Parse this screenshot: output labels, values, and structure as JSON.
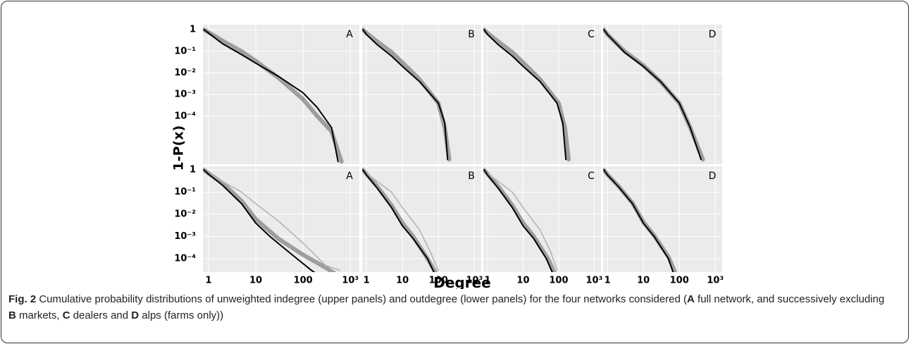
{
  "chart_data": [
    {
      "type": "line",
      "label": "A",
      "xlim": [
        0.76,
        1550
      ],
      "ylim": [
        1.7,
        6e-07
      ],
      "log_x": true,
      "log_y": true,
      "grid": true,
      "xticks": [
        1,
        10,
        100,
        {
          "value": 1000,
          "label": "10³"
        }
      ],
      "yticks": [
        1,
        {
          "value": 0.1,
          "label": "10⁻¹"
        },
        {
          "value": 0.01,
          "label": "10⁻²"
        },
        {
          "value": 0.001,
          "label": "10⁻³"
        },
        {
          "value": 0.0001,
          "label": "10⁻⁴"
        }
      ],
      "series": [
        {
          "color": "#9e9e9e",
          "x": [
            0.8,
            1,
            2,
            5,
            10,
            30,
            100,
            200,
            400,
            650
          ],
          "values": [
            1,
            0.75,
            0.3,
            0.1,
            0.035,
            0.006,
            0.0006,
            0.0001,
            2e-05,
            8e-07
          ]
        },
        {
          "color": "#000000",
          "x": [
            0.8,
            1,
            2,
            5,
            10,
            30,
            100,
            200,
            400,
            550
          ],
          "values": [
            1,
            0.7,
            0.22,
            0.07,
            0.028,
            0.007,
            0.0012,
            0.00025,
            3e-05,
            8e-07
          ]
        }
      ]
    },
    {
      "type": "line",
      "label": "B",
      "xlim": [
        0.76,
        1550
      ],
      "ylim": [
        1.7,
        6e-07
      ],
      "log_x": true,
      "log_y": true,
      "grid": true,
      "xticks": [
        1,
        10,
        100,
        {
          "value": 1000,
          "label": "10³"
        }
      ],
      "yticks": [
        1,
        {
          "value": 0.1,
          "label": "10⁻¹"
        },
        {
          "value": 0.01,
          "label": "10⁻²"
        },
        {
          "value": 0.001,
          "label": "10⁻³"
        },
        {
          "value": 0.0001,
          "label": "10⁻⁴"
        }
      ],
      "series": [
        {
          "color": "#9e9e9e",
          "x": [
            0.8,
            1,
            2,
            5,
            10,
            30,
            100,
            150,
            200
          ],
          "values": [
            1,
            0.7,
            0.28,
            0.09,
            0.03,
            0.005,
            0.0004,
            3e-05,
            1e-06
          ]
        },
        {
          "color": "#000000",
          "x": [
            0.8,
            1,
            2,
            5,
            10,
            30,
            100,
            150,
            180
          ],
          "values": [
            1,
            0.6,
            0.2,
            0.06,
            0.02,
            0.004,
            0.0004,
            5e-05,
            1e-06
          ]
        }
      ]
    },
    {
      "type": "line",
      "label": "C",
      "xlim": [
        0.76,
        1550
      ],
      "ylim": [
        1.7,
        6e-07
      ],
      "log_x": true,
      "log_y": true,
      "grid": true,
      "xticks": [
        1,
        10,
        100,
        {
          "value": 1000,
          "label": "10³"
        }
      ],
      "yticks": [
        1,
        {
          "value": 0.1,
          "label": "10⁻¹"
        },
        {
          "value": 0.01,
          "label": "10⁻²"
        },
        {
          "value": 0.001,
          "label": "10⁻³"
        },
        {
          "value": 0.0001,
          "label": "10⁻⁴"
        }
      ],
      "series": [
        {
          "color": "#9e9e9e",
          "x": [
            0.8,
            1,
            2,
            5,
            10,
            30,
            100,
            150,
            190
          ],
          "values": [
            1,
            0.7,
            0.28,
            0.09,
            0.03,
            0.005,
            0.0004,
            3e-05,
            1e-06
          ]
        },
        {
          "color": "#000000",
          "x": [
            0.8,
            1,
            2,
            5,
            10,
            30,
            90,
            130,
            160
          ],
          "values": [
            1,
            0.6,
            0.2,
            0.06,
            0.02,
            0.004,
            0.0004,
            5e-05,
            1e-06
          ]
        }
      ]
    },
    {
      "type": "line",
      "label": "D",
      "xlim": [
        0.76,
        1550
      ],
      "ylim": [
        1.7,
        6e-07
      ],
      "log_x": true,
      "log_y": true,
      "grid": true,
      "xticks": [
        1,
        10,
        100,
        {
          "value": 1000,
          "label": "10³"
        }
      ],
      "yticks": [
        1,
        {
          "value": 0.1,
          "label": "10⁻¹"
        },
        {
          "value": 0.01,
          "label": "10⁻²"
        },
        {
          "value": 0.001,
          "label": "10⁻³"
        },
        {
          "value": 0.0001,
          "label": "10⁻⁴"
        }
      ],
      "series": [
        {
          "color": "#9e9e9e",
          "x": [
            0.8,
            1,
            3,
            10,
            30,
            100,
            200,
            450
          ],
          "values": [
            1,
            0.6,
            0.1,
            0.022,
            0.004,
            0.0004,
            3e-05,
            1e-06
          ]
        },
        {
          "color": "#000000",
          "x": [
            0.8,
            1,
            3,
            10,
            30,
            100,
            200,
            400
          ],
          "values": [
            1,
            0.6,
            0.09,
            0.02,
            0.004,
            0.0004,
            3e-05,
            1e-06
          ]
        }
      ]
    },
    {
      "type": "line",
      "label": "A",
      "xlim": [
        0.76,
        1550
      ],
      "ylim": [
        1.45,
        2.5e-05
      ],
      "log_x": true,
      "log_y": true,
      "grid": true,
      "xticks": [
        1,
        10,
        100,
        {
          "value": 1000,
          "label": "10³"
        }
      ],
      "yticks": [
        1,
        {
          "value": 0.1,
          "label": "10⁻¹"
        },
        {
          "value": 0.01,
          "label": "10⁻²"
        },
        {
          "value": 0.001,
          "label": "10⁻³"
        },
        {
          "value": 0.0001,
          "label": "10⁻⁴"
        }
      ],
      "series": [
        {
          "color": "#9e9e9e",
          "x": [
            0.8,
            1,
            2,
            5,
            10,
            30,
            100,
            300,
            500
          ],
          "values": [
            1,
            0.7,
            0.25,
            0.04,
            0.006,
            0.0008,
            0.00015,
            4e-05,
            2e-05
          ]
        },
        {
          "color": "#b5b5b5",
          "x": [
            1,
            2,
            5,
            10,
            30,
            100,
            300,
            600
          ],
          "values": [
            0.7,
            0.3,
            0.1,
            0.03,
            0.005,
            0.0005,
            5e-05,
            3e-05
          ]
        },
        {
          "color": "#000000",
          "x": [
            0.8,
            1,
            2,
            5,
            10,
            20,
            50,
            100,
            150,
            200
          ],
          "values": [
            1,
            0.65,
            0.2,
            0.03,
            0.004,
            0.001,
            0.0002,
            6e-05,
            3e-05,
            2e-05
          ]
        }
      ]
    },
    {
      "type": "line",
      "label": "B",
      "xlim": [
        0.76,
        1550
      ],
      "ylim": [
        1.45,
        2.5e-05
      ],
      "log_x": true,
      "log_y": true,
      "grid": true,
      "xticks": [
        1,
        10,
        100,
        {
          "value": 1000,
          "label": "10³"
        }
      ],
      "yticks": [
        1,
        {
          "value": 0.1,
          "label": "10⁻¹"
        },
        {
          "value": 0.01,
          "label": "10⁻²"
        },
        {
          "value": 0.001,
          "label": "10⁻³"
        },
        {
          "value": 0.0001,
          "label": "10⁻⁴"
        }
      ],
      "series": [
        {
          "color": "#9e9e9e",
          "x": [
            0.8,
            1,
            2,
            5,
            10,
            20,
            50,
            90
          ],
          "values": [
            1,
            0.65,
            0.18,
            0.025,
            0.004,
            0.001,
            0.0001,
            2e-05
          ]
        },
        {
          "color": "#b5b5b5",
          "x": [
            1,
            2,
            5,
            10,
            30,
            60,
            100
          ],
          "values": [
            0.7,
            0.3,
            0.1,
            0.02,
            0.002,
            0.0002,
            3e-05
          ]
        },
        {
          "color": "#000000",
          "x": [
            0.8,
            1,
            2,
            5,
            10,
            20,
            50,
            80
          ],
          "values": [
            1,
            0.6,
            0.15,
            0.02,
            0.003,
            0.0008,
            0.0001,
            2e-05
          ]
        }
      ]
    },
    {
      "type": "line",
      "label": "C",
      "xlim": [
        0.76,
        1550
      ],
      "ylim": [
        1.45,
        2.5e-05
      ],
      "log_x": true,
      "log_y": true,
      "grid": true,
      "xticks": [
        1,
        10,
        100,
        {
          "value": 1000,
          "label": "10³"
        }
      ],
      "yticks": [
        1,
        {
          "value": 0.1,
          "label": "10⁻¹"
        },
        {
          "value": 0.01,
          "label": "10⁻²"
        },
        {
          "value": 0.001,
          "label": "10⁻³"
        },
        {
          "value": 0.0001,
          "label": "10⁻⁴"
        }
      ],
      "series": [
        {
          "color": "#9e9e9e",
          "x": [
            0.8,
            1,
            2,
            5,
            10,
            20,
            50,
            80
          ],
          "values": [
            1,
            0.65,
            0.18,
            0.025,
            0.004,
            0.001,
            0.0001,
            2e-05
          ]
        },
        {
          "color": "#b5b5b5",
          "x": [
            1,
            2,
            5,
            10,
            30,
            60,
            90
          ],
          "values": [
            0.7,
            0.3,
            0.1,
            0.02,
            0.002,
            0.0002,
            3e-05
          ]
        },
        {
          "color": "#000000",
          "x": [
            0.8,
            1,
            2,
            5,
            10,
            20,
            45,
            70
          ],
          "values": [
            1,
            0.6,
            0.15,
            0.02,
            0.003,
            0.0008,
            0.0001,
            2e-05
          ]
        }
      ]
    },
    {
      "type": "line",
      "label": "D",
      "xlim": [
        0.76,
        1550
      ],
      "ylim": [
        1.45,
        2.5e-05
      ],
      "log_x": true,
      "log_y": true,
      "grid": true,
      "xticks": [
        1,
        10,
        100,
        {
          "value": 1000,
          "label": "10³"
        }
      ],
      "yticks": [
        1,
        {
          "value": 0.1,
          "label": "10⁻¹"
        },
        {
          "value": 0.01,
          "label": "10⁻²"
        },
        {
          "value": 0.001,
          "label": "10⁻³"
        },
        {
          "value": 0.0001,
          "label": "10⁻⁴"
        }
      ],
      "series": [
        {
          "color": "#9e9e9e",
          "x": [
            0.8,
            1,
            2,
            5,
            10,
            20,
            50,
            80
          ],
          "values": [
            1,
            0.62,
            0.19,
            0.032,
            0.0045,
            0.0011,
            0.00012,
            2e-05
          ]
        },
        {
          "color": "#000000",
          "x": [
            0.8,
            1,
            2,
            5,
            10,
            20,
            50,
            70
          ],
          "values": [
            1,
            0.6,
            0.18,
            0.03,
            0.004,
            0.001,
            0.0001,
            2e-05
          ]
        }
      ]
    }
  ],
  "figure": {
    "y_label": "1-P(x)",
    "x_label": "Degree",
    "caption": [
      {
        "text": "Fig. 2",
        "bold": true
      },
      {
        "text": " Cumulative probability distributions of unweighted indegree (upper panels) and outdegree (lower panels) for the four networks considered (",
        "bold": false
      },
      {
        "text": "A",
        "bold": true
      },
      {
        "text": " full network, and successively excluding ",
        "bold": false
      },
      {
        "text": "B",
        "bold": true
      },
      {
        "text": " markets, ",
        "bold": false
      },
      {
        "text": "C",
        "bold": true
      },
      {
        "text": " dealers and ",
        "bold": false
      },
      {
        "text": "D",
        "bold": true
      },
      {
        "text": " alps (farms only))",
        "bold": false
      }
    ]
  }
}
